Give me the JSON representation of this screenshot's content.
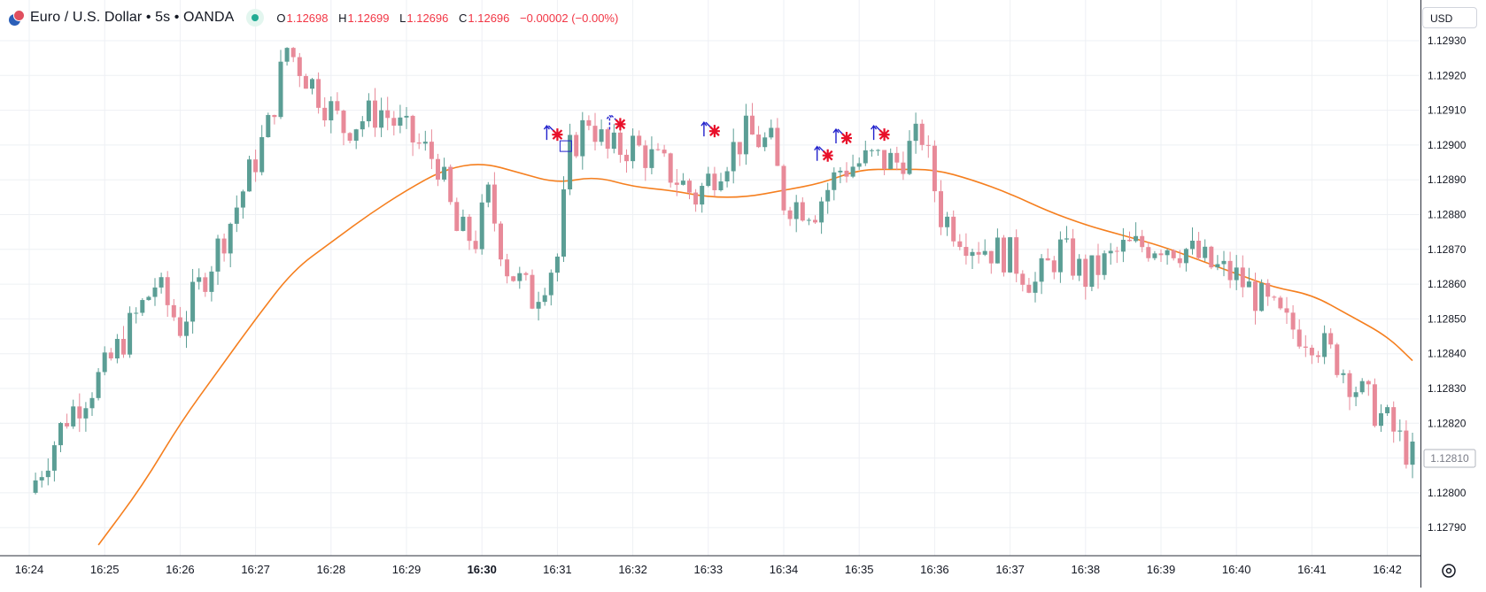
{
  "header": {
    "title": "Euro / U.S. Dollar • 5s • OANDA",
    "ohlc": {
      "o_label": "O",
      "o": "1.12698",
      "h_label": "H",
      "h": "1.12699",
      "l_label": "L",
      "l": "1.12696",
      "c_label": "C",
      "c": "1.12696",
      "change": "−0.00002 (−0.00%)"
    }
  },
  "currency_button": "USD",
  "colors": {
    "up": "#5b9e95",
    "down": "#e88a99",
    "ma": "#f57f1f",
    "grid": "#eef0f4",
    "marker_arrow": "#2222cc",
    "marker_star": "#e8102a",
    "price_tag_border": "#b2b5be"
  },
  "chart_data": {
    "type": "candlestick",
    "x_axis": {
      "tick_labels": [
        "16:24",
        "16:25",
        "16:26",
        "16:27",
        "16:28",
        "16:29",
        "16:30",
        "16:31",
        "16:32",
        "16:33",
        "16:34",
        "16:35",
        "16:36",
        "16:37",
        "16:38",
        "16:39",
        "16:40",
        "16:41",
        "16:42"
      ],
      "bold_tick": "16:30"
    },
    "y_axis": {
      "ylim": [
        1.12785,
        1.12935
      ],
      "tick_labels": [
        "1.12930",
        "1.12920",
        "1.12910",
        "1.12900",
        "1.12890",
        "1.12880",
        "1.12870",
        "1.12860",
        "1.12850",
        "1.12840",
        "1.12830",
        "1.12820",
        "1.12810",
        "1.12800",
        "1.12790"
      ],
      "ticks": [
        1.1293,
        1.1292,
        1.1291,
        1.129,
        1.1289,
        1.1288,
        1.1287,
        1.1286,
        1.1285,
        1.1284,
        1.1283,
        1.1282,
        1.1281,
        1.128,
        1.1279
      ]
    },
    "last_price_label": "1.12810",
    "grid": true,
    "close_anchors": [
      [
        "16:24",
        1.128
      ],
      [
        "16:24:30",
        1.12822
      ],
      [
        "16:25",
        1.12835
      ],
      [
        "16:25:40",
        1.1286
      ],
      [
        "16:26",
        1.12848
      ],
      [
        "16:26:40",
        1.12878
      ],
      [
        "16:27:10",
        1.12905
      ],
      [
        "16:27:25",
        1.12928
      ],
      [
        "16:27:50",
        1.12915
      ],
      [
        "16:28:10",
        1.12905
      ],
      [
        "16:28:40",
        1.1291
      ],
      [
        "16:29",
        1.12903
      ],
      [
        "16:29:25",
        1.12895
      ],
      [
        "16:29:40",
        1.12875
      ],
      [
        "16:29:55",
        1.12873
      ],
      [
        "16:30:05",
        1.12885
      ],
      [
        "16:30:20",
        1.12865
      ],
      [
        "16:30:40",
        1.12856
      ],
      [
        "16:31",
        1.12868
      ],
      [
        "16:31:10",
        1.12898
      ],
      [
        "16:31:25",
        1.12908
      ],
      [
        "16:31:40",
        1.12898
      ],
      [
        "16:32",
        1.129
      ],
      [
        "16:32:30",
        1.12892
      ],
      [
        "16:32:50",
        1.12885
      ],
      [
        "16:33:10",
        1.12895
      ],
      [
        "16:33:30",
        1.12903
      ],
      [
        "16:33:50",
        1.129
      ],
      [
        "16:34",
        1.12884
      ],
      [
        "16:34:25",
        1.12882
      ],
      [
        "16:34:45",
        1.12893
      ],
      [
        "16:35:10",
        1.12896
      ],
      [
        "16:35:30",
        1.12895
      ],
      [
        "16:35:50",
        1.12903
      ],
      [
        "16:36:05",
        1.1288
      ],
      [
        "16:36:30",
        1.12872
      ],
      [
        "16:37",
        1.12868
      ],
      [
        "16:37:20",
        1.1286
      ],
      [
        "16:37:40",
        1.1287
      ],
      [
        "16:38",
        1.12862
      ],
      [
        "16:38:30",
        1.1287
      ],
      [
        "16:39",
        1.12872
      ],
      [
        "16:39:20",
        1.1287
      ],
      [
        "16:39:40",
        1.12865
      ],
      [
        "16:40",
        1.12862
      ],
      [
        "16:40:20",
        1.12855
      ],
      [
        "16:40:40",
        1.12848
      ],
      [
        "16:41",
        1.12845
      ],
      [
        "16:41:20",
        1.12838
      ],
      [
        "16:41:40",
        1.12828
      ],
      [
        "16:42",
        1.1282
      ],
      [
        "16:42:20",
        1.1281
      ]
    ],
    "moving_average": [
      [
        "16:24:55",
        1.12785
      ],
      [
        "16:25:30",
        1.12802
      ],
      [
        "16:26",
        1.1282
      ],
      [
        "16:26:30",
        1.12835
      ],
      [
        "16:27",
        1.1285
      ],
      [
        "16:27:30",
        1.12864
      ],
      [
        "16:28",
        1.12872
      ],
      [
        "16:28:30",
        1.1288
      ],
      [
        "16:29",
        1.12887
      ],
      [
        "16:29:30",
        1.12893
      ],
      [
        "16:30",
        1.12895
      ],
      [
        "16:30:30",
        1.12892
      ],
      [
        "16:31",
        1.12889
      ],
      [
        "16:31:30",
        1.12891
      ],
      [
        "16:32",
        1.12888
      ],
      [
        "16:32:30",
        1.12887
      ],
      [
        "16:33",
        1.12885
      ],
      [
        "16:33:30",
        1.12885
      ],
      [
        "16:34",
        1.12887
      ],
      [
        "16:34:30",
        1.12889
      ],
      [
        "16:35",
        1.12893
      ],
      [
        "16:35:30",
        1.12893
      ],
      [
        "16:36",
        1.12893
      ],
      [
        "16:36:30",
        1.1289
      ],
      [
        "16:37",
        1.12886
      ],
      [
        "16:37:30",
        1.12881
      ],
      [
        "16:38",
        1.12877
      ],
      [
        "16:38:30",
        1.12874
      ],
      [
        "16:39",
        1.12871
      ],
      [
        "16:39:30",
        1.12867
      ],
      [
        "16:40",
        1.12863
      ],
      [
        "16:40:30",
        1.12859
      ],
      [
        "16:41",
        1.12857
      ],
      [
        "16:41:30",
        1.12851
      ],
      [
        "16:42",
        1.12845
      ],
      [
        "16:42:20",
        1.12838
      ]
    ],
    "signals": [
      {
        "time": "16:31",
        "price": 1.12903,
        "arrow": "up-right",
        "boxed": true
      },
      {
        "time": "16:31:50",
        "price": 1.12906,
        "arrow": "up-right-dashed",
        "boxed": false
      },
      {
        "time": "16:33:05",
        "price": 1.12904,
        "arrow": "up-right",
        "boxed": false
      },
      {
        "time": "16:34:35",
        "price": 1.12897,
        "arrow": "up-right",
        "boxed": false
      },
      {
        "time": "16:34:50",
        "price": 1.12902,
        "arrow": "up-right",
        "boxed": false
      },
      {
        "time": "16:35:20",
        "price": 1.12903,
        "arrow": "up-right",
        "boxed": false
      }
    ]
  }
}
